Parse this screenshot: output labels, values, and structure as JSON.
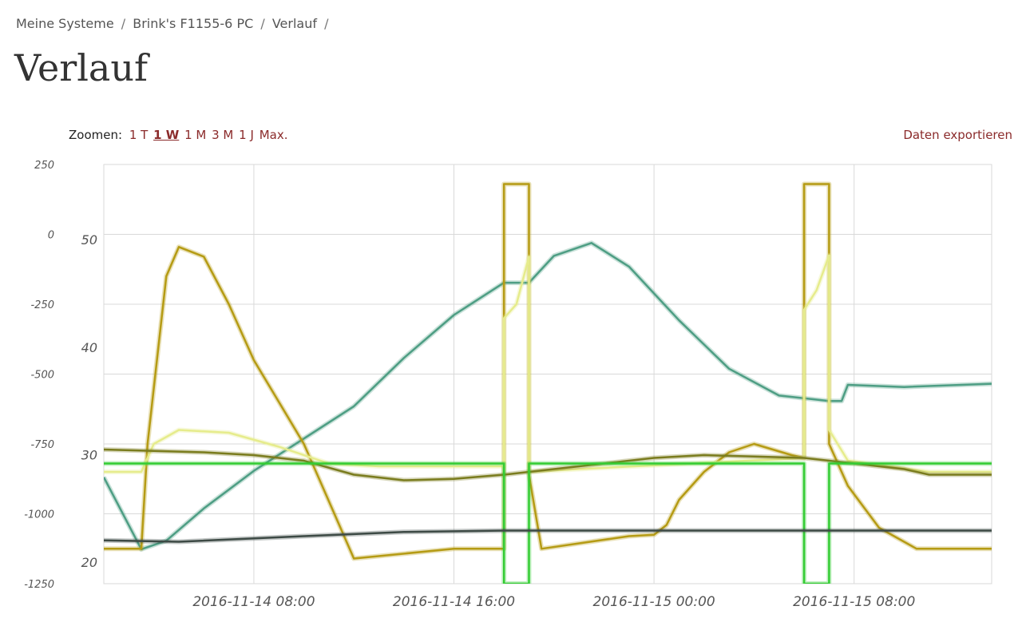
{
  "breadcrumb": {
    "items": [
      "Meine Systeme",
      "Brink's F1155-6 PC",
      "Verlauf"
    ],
    "separator": "/"
  },
  "page": {
    "title": "Verlauf"
  },
  "zoom": {
    "label": "Zoomen:",
    "options": [
      "1 T",
      "1 W",
      "1 M",
      "3 M",
      "1 J",
      "Max."
    ],
    "selected": "1 W"
  },
  "export_label": "Daten exportieren",
  "colors": {
    "link": "#8b2b2b",
    "grid": "#d9d9d9"
  },
  "chart_data": {
    "type": "line",
    "x_ticks": [
      "2016-11-14 08:00",
      "2016-11-14 16:00",
      "2016-11-15 00:00",
      "2016-11-15 08:00"
    ],
    "x_range": [
      "2016-11-14 02:00",
      "2016-11-15 13:30"
    ],
    "y_left": {
      "ticks": [
        "250",
        "0",
        "-250",
        "-500",
        "-750",
        "-1000",
        "-1250"
      ],
      "range": [
        -1250,
        250
      ]
    },
    "y_right": {
      "ticks": [
        "50",
        "40",
        "30",
        "20"
      ],
      "range": [
        18,
        57
      ]
    },
    "grid": true,
    "legend": "none",
    "series": [
      {
        "color": "#4e9e84",
        "axis": "right",
        "points": [
          [
            "2016-11-14 02:00",
            27.9
          ],
          [
            "2016-11-14 03:30",
            21.2
          ],
          [
            "2016-11-14 04:30",
            22
          ],
          [
            "2016-11-14 06:00",
            25
          ],
          [
            "2016-11-14 08:00",
            28.5
          ],
          [
            "2016-11-14 10:00",
            31.5
          ],
          [
            "2016-11-14 12:00",
            34.5
          ],
          [
            "2016-11-14 14:00",
            39
          ],
          [
            "2016-11-14 16:00",
            43
          ],
          [
            "2016-11-14 18:00",
            46
          ],
          [
            "2016-11-14 19:00",
            46
          ],
          [
            "2016-11-14 20:00",
            48.5
          ],
          [
            "2016-11-14 21:30",
            49.7
          ],
          [
            "2016-11-14 23:00",
            47.5
          ],
          [
            "2016-11-15 01:00",
            42.5
          ],
          [
            "2016-11-15 03:00",
            38
          ],
          [
            "2016-11-15 05:00",
            35.5
          ],
          [
            "2016-11-15 07:00",
            35
          ],
          [
            "2016-11-15 07:30",
            35
          ],
          [
            "2016-11-15 07:45",
            36.5
          ],
          [
            "2016-11-15 10:00",
            36.3
          ],
          [
            "2016-11-15 13:30",
            36.6
          ]
        ]
      },
      {
        "color": "#b59b14",
        "axis": "left",
        "points": [
          [
            "2016-11-14 02:00",
            -1125
          ],
          [
            "2016-11-14 03:30",
            -1125
          ],
          [
            "2016-11-14 03:45",
            -750
          ],
          [
            "2016-11-14 04:30",
            -150
          ],
          [
            "2016-11-14 05:00",
            -45
          ],
          [
            "2016-11-14 06:00",
            -80
          ],
          [
            "2016-11-14 07:00",
            -250
          ],
          [
            "2016-11-14 08:00",
            -450
          ],
          [
            "2016-11-14 09:00",
            -600
          ],
          [
            "2016-11-14 10:00",
            -750
          ],
          [
            "2016-11-14 12:00",
            -1160
          ],
          [
            "2016-11-14 16:00",
            -1125
          ],
          [
            "2016-11-14 18:00",
            -1125
          ],
          [
            "2016-11-14 18:00",
            180
          ],
          [
            "2016-11-14 19:00",
            180
          ],
          [
            "2016-11-14 19:00",
            -860
          ],
          [
            "2016-11-14 19:30",
            -1125
          ],
          [
            "2016-11-14 23:00",
            -1080
          ],
          [
            "2016-11-15 00:00",
            -1075
          ],
          [
            "2016-11-15 00:30",
            -1040
          ],
          [
            "2016-11-15 01:00",
            -950
          ],
          [
            "2016-11-15 02:00",
            -850
          ],
          [
            "2016-11-15 03:00",
            -780
          ],
          [
            "2016-11-15 04:00",
            -750
          ],
          [
            "2016-11-15 05:30",
            -790
          ],
          [
            "2016-11-15 06:00",
            -800
          ],
          [
            "2016-11-15 06:00",
            180
          ],
          [
            "2016-11-15 07:00",
            180
          ],
          [
            "2016-11-15 07:00",
            -750
          ],
          [
            "2016-11-15 07:45",
            -900
          ],
          [
            "2016-11-15 09:00",
            -1050
          ],
          [
            "2016-11-15 10:30",
            -1125
          ],
          [
            "2016-11-15 13:30",
            -1125
          ]
        ]
      },
      {
        "color": "#e6ec8c",
        "axis": "left",
        "points": [
          [
            "2016-11-14 02:00",
            -850
          ],
          [
            "2016-11-14 03:30",
            -850
          ],
          [
            "2016-11-14 04:00",
            -750
          ],
          [
            "2016-11-14 05:00",
            -700
          ],
          [
            "2016-11-14 07:00",
            -710
          ],
          [
            "2016-11-14 09:00",
            -760
          ],
          [
            "2016-11-14 11:00",
            -820
          ],
          [
            "2016-11-14 13:00",
            -830
          ],
          [
            "2016-11-14 18:00",
            -830
          ],
          [
            "2016-11-14 18:00",
            -300
          ],
          [
            "2016-11-14 18:30",
            -250
          ],
          [
            "2016-11-14 19:00",
            -80
          ],
          [
            "2016-11-14 19:00",
            -850
          ],
          [
            "2016-11-14 21:00",
            -840
          ],
          [
            "2016-11-15 06:00",
            -800
          ],
          [
            "2016-11-15 06:00",
            -270
          ],
          [
            "2016-11-15 06:30",
            -200
          ],
          [
            "2016-11-15 07:00",
            -75
          ],
          [
            "2016-11-15 07:00",
            -700
          ],
          [
            "2016-11-15 07:45",
            -810
          ],
          [
            "2016-11-15 11:00",
            -850
          ],
          [
            "2016-11-15 13:30",
            -850
          ]
        ]
      },
      {
        "color": "#7a7c1e",
        "axis": "left",
        "points": [
          [
            "2016-11-14 02:00",
            -770
          ],
          [
            "2016-11-14 04:00",
            -775
          ],
          [
            "2016-11-14 06:00",
            -780
          ],
          [
            "2016-11-14 08:00",
            -790
          ],
          [
            "2016-11-14 10:00",
            -810
          ],
          [
            "2016-11-14 12:00",
            -860
          ],
          [
            "2016-11-14 14:00",
            -880
          ],
          [
            "2016-11-14 16:00",
            -875
          ],
          [
            "2016-11-14 18:00",
            -860
          ],
          [
            "2016-11-14 20:00",
            -840
          ],
          [
            "2016-11-14 22:00",
            -820
          ],
          [
            "2016-11-15 00:00",
            -800
          ],
          [
            "2016-11-15 02:00",
            -790
          ],
          [
            "2016-11-15 04:00",
            -795
          ],
          [
            "2016-11-15 06:00",
            -800
          ],
          [
            "2016-11-15 08:00",
            -820
          ],
          [
            "2016-11-15 10:00",
            -840
          ],
          [
            "2016-11-15 11:00",
            -860
          ],
          [
            "2016-11-15 13:30",
            -860
          ]
        ]
      },
      {
        "color": "#33cc33",
        "axis": "left",
        "points": [
          [
            "2016-11-14 02:00",
            -820
          ],
          [
            "2016-11-14 18:00",
            -820
          ],
          [
            "2016-11-14 18:00",
            -1250
          ],
          [
            "2016-11-14 19:00",
            -1250
          ],
          [
            "2016-11-14 19:00",
            -820
          ],
          [
            "2016-11-15 06:00",
            -820
          ],
          [
            "2016-11-15 06:00",
            -1250
          ],
          [
            "2016-11-15 07:00",
            -1250
          ],
          [
            "2016-11-15 07:00",
            -820
          ],
          [
            "2016-11-15 13:30",
            -820
          ]
        ]
      },
      {
        "color": "#3d4a45",
        "axis": "left",
        "points": [
          [
            "2016-11-14 02:00",
            -1095
          ],
          [
            "2016-11-14 05:00",
            -1100
          ],
          [
            "2016-11-14 10:00",
            -1080
          ],
          [
            "2016-11-14 14:00",
            -1065
          ],
          [
            "2016-11-14 18:00",
            -1060
          ],
          [
            "2016-11-15 13:30",
            -1060
          ]
        ]
      }
    ]
  }
}
